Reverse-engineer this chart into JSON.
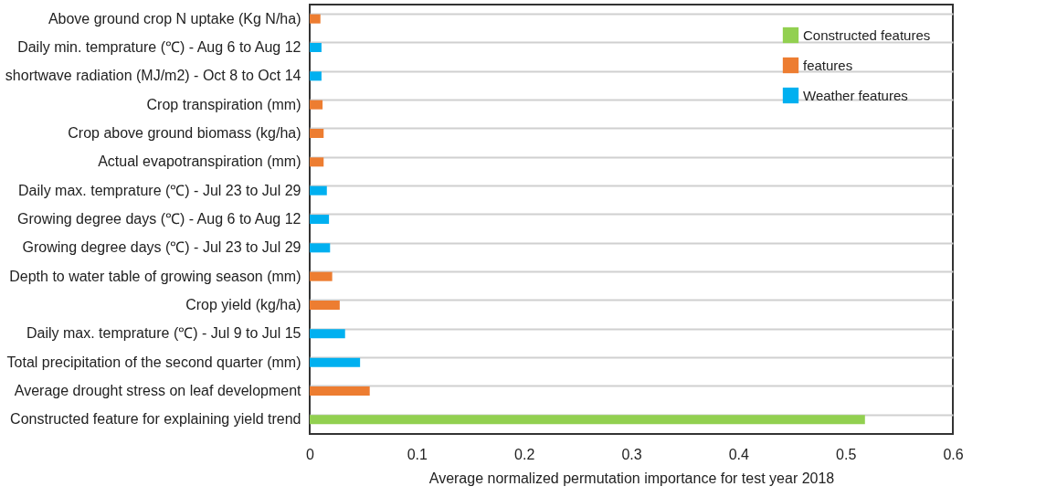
{
  "chart_data": {
    "type": "bar",
    "orientation": "horizontal",
    "xlabel": "Average normalized permutation importance for test year 2018",
    "categories": [
      "Above ground crop N uptake (Kg N/ha)",
      "Daily min. temprature (℃) - Aug 6 to Aug 12",
      "shortwave radiation (MJ/m2) - Oct 8 to Oct 14",
      "Crop transpiration (mm)",
      "Crop above ground biomass (kg/ha)",
      "Actual evapotranspiration (mm)",
      "Daily max. temprature (℃) - Jul 23 to Jul 29",
      "Growing degree days (℃) - Aug 6 to Aug 12",
      "Growing degree days (℃) - Jul 23 to Jul 29",
      "Depth to water table of growing season (mm)",
      "Crop yield (kg/ha)",
      "Daily max. temprature (℃) - Jul 9 to Jul 15",
      "Total precipitation of the second quarter (mm)",
      "Average drought stress on leaf development",
      "Constructed feature for explaining yield trend"
    ],
    "series": [
      {
        "name": "Constructed features",
        "color": "#92d050",
        "values": [
          null,
          null,
          null,
          null,
          null,
          null,
          null,
          null,
          null,
          null,
          null,
          null,
          null,
          null,
          0.518
        ]
      },
      {
        "name": "features",
        "color": "#ed7d31",
        "values": [
          0.01,
          null,
          null,
          0.012,
          0.013,
          0.013,
          null,
          null,
          null,
          0.021,
          0.028,
          null,
          null,
          0.056,
          null
        ]
      },
      {
        "name": "Weather features",
        "color": "#00b0f0",
        "values": [
          null,
          0.011,
          0.011,
          null,
          null,
          null,
          0.016,
          0.018,
          0.019,
          null,
          null,
          0.033,
          0.047,
          null,
          null
        ]
      }
    ],
    "xlim": [
      0,
      0.6
    ],
    "xticks": [
      0,
      0.1,
      0.2,
      0.3,
      0.4,
      0.5,
      0.6
    ],
    "grid": "y",
    "legend": "top right"
  }
}
